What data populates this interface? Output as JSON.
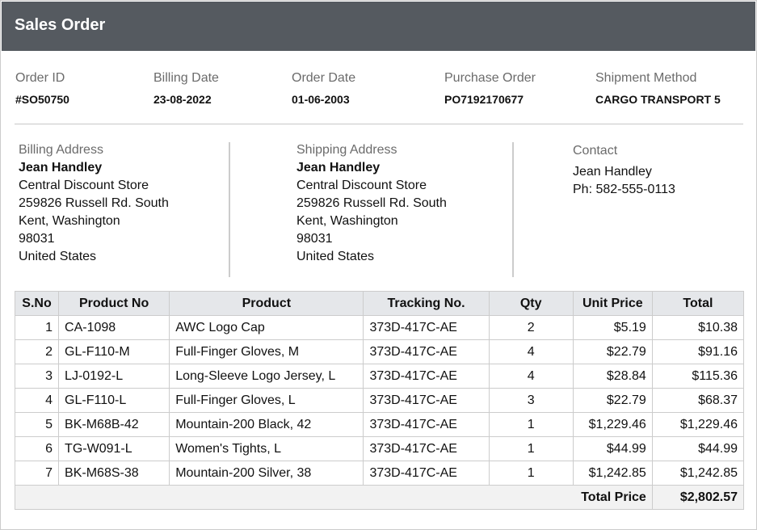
{
  "header": {
    "title": "Sales Order"
  },
  "order_info": [
    {
      "label": "Order ID",
      "value": "#SO50750"
    },
    {
      "label": "Billing Date",
      "value": "23-08-2022"
    },
    {
      "label": "Order Date",
      "value": "01-06-2003"
    },
    {
      "label": "Purchase Order",
      "value": "PO7192170677"
    },
    {
      "label": "Shipment Method",
      "value": "CARGO TRANSPORT 5"
    }
  ],
  "addresses": [
    {
      "heading": "Billing Address",
      "name": "Jean Handley",
      "lines": [
        "Central Discount Store",
        "259826 Russell Rd. South",
        "Kent, Washington",
        "98031",
        "United States"
      ]
    },
    {
      "heading": "Shipping Address",
      "name": "Jean Handley",
      "lines": [
        "Central Discount Store",
        "259826 Russell Rd. South",
        "Kent, Washington",
        "98031",
        "United States"
      ]
    },
    {
      "heading": "Contact",
      "lines": [
        "Jean Handley",
        "Ph: 582-555-0113"
      ]
    }
  ],
  "table": {
    "columns": [
      "S.No",
      "Product No",
      "Product",
      "Tracking No.",
      "Qty",
      "Unit Price",
      "Total"
    ],
    "rows": [
      [
        1,
        "CA-1098",
        "AWC Logo Cap",
        "373D-417C-AE",
        2,
        "$5.19",
        "$10.38"
      ],
      [
        2,
        "GL-F110-M",
        "Full-Finger Gloves, M",
        "373D-417C-AE",
        4,
        "$22.79",
        "$91.16"
      ],
      [
        3,
        "LJ-0192-L",
        "Long-Sleeve Logo Jersey, L",
        "373D-417C-AE",
        4,
        "$28.84",
        "$115.36"
      ],
      [
        4,
        "GL-F110-L",
        "Full-Finger Gloves, L",
        "373D-417C-AE",
        3,
        "$22.79",
        "$68.37"
      ],
      [
        5,
        "BK-M68B-42",
        "Mountain-200 Black, 42",
        "373D-417C-AE",
        1,
        "$1,229.46",
        "$1,229.46"
      ],
      [
        6,
        "TG-W091-L",
        "Women's Tights, L",
        "373D-417C-AE",
        1,
        "$44.99",
        "$44.99"
      ],
      [
        7,
        "BK-M68S-38",
        "Mountain-200 Silver, 38",
        "373D-417C-AE",
        1,
        "$1,242.85",
        "$1,242.85"
      ]
    ],
    "total_label": "Total Price",
    "total": "$2,802.57"
  }
}
